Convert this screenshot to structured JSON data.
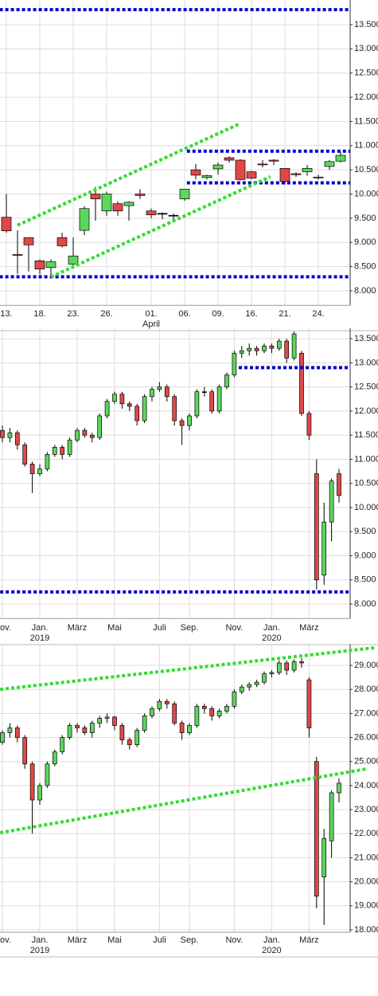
{
  "chart_data": [
    {
      "type": "candlestick",
      "categories": [
        "13.",
        null,
        null,
        "18.",
        null,
        null,
        "23.",
        null,
        null,
        "26.",
        null,
        null,
        null,
        "01.",
        null,
        null,
        "06.",
        null,
        null,
        "09.",
        null,
        null,
        "16.",
        null,
        null,
        "21.",
        null,
        null,
        "24.",
        null,
        null
      ],
      "x_sublabels": [
        null,
        null,
        null,
        null,
        null,
        null,
        null,
        null,
        null,
        null,
        null,
        null,
        null,
        "April",
        null,
        null,
        null,
        null,
        null,
        null,
        null,
        null,
        null,
        null,
        null,
        null,
        null,
        null,
        null,
        null,
        null
      ],
      "open": [
        9520,
        8750,
        9100,
        8620,
        8480,
        9100,
        8550,
        9250,
        10000,
        9650,
        9800,
        9760,
        10000,
        9650,
        9600,
        9560,
        9900,
        10500,
        10340,
        10520,
        10750,
        10700,
        10460,
        10620,
        10700,
        10530,
        10420,
        10460,
        10350,
        10570,
        10680
      ],
      "high": [
        10000,
        9250,
        9100,
        8650,
        8650,
        9200,
        9100,
        9750,
        10150,
        10050,
        9850,
        9850,
        10100,
        9700,
        9620,
        9600,
        10100,
        10620,
        10400,
        10650,
        10780,
        10720,
        10480,
        10700,
        10720,
        10540,
        10450,
        10600,
        10400,
        10700,
        10870
      ],
      "low": [
        9200,
        8350,
        8400,
        8340,
        8260,
        8900,
        8520,
        9150,
        9450,
        9550,
        9550,
        9450,
        9900,
        9500,
        9480,
        9450,
        9860,
        10300,
        10300,
        10400,
        10650,
        10280,
        10300,
        10550,
        10600,
        10200,
        10350,
        10380,
        10300,
        10500,
        10650
      ],
      "close": [
        9240,
        8740,
        8950,
        8450,
        8600,
        8930,
        8720,
        9700,
        9900,
        10000,
        9650,
        9830,
        9970,
        9570,
        9600,
        9560,
        10100,
        10390,
        10380,
        10600,
        10700,
        10300,
        10330,
        10610,
        10680,
        10260,
        10400,
        10530,
        10340,
        10670,
        10800
      ],
      "up_color": "#5cd65c",
      "down_color": "#e04848",
      "flat_color": "#000000",
      "ylim": [
        7700,
        14000
      ],
      "yticks": [
        {
          "value": 8000,
          "label": "8.000"
        },
        {
          "value": 8500,
          "label": "8.500"
        },
        {
          "value": 9000,
          "label": "9.000"
        },
        {
          "value": 9500,
          "label": "9.500"
        },
        {
          "value": 10000,
          "label": "10.000"
        },
        {
          "value": 10500,
          "label": "10.500"
        },
        {
          "value": 11000,
          "label": "11.000"
        },
        {
          "value": 11500,
          "label": "11.500"
        },
        {
          "value": 12000,
          "label": "12.000"
        },
        {
          "value": 12500,
          "label": "12.500"
        },
        {
          "value": 13000,
          "label": "13.000"
        },
        {
          "value": 13500,
          "label": "13.500"
        }
      ],
      "grid": true,
      "lines": [
        {
          "x0": -0.6,
          "y0": 13810,
          "x1": 30.86,
          "y1": 13810,
          "color": "#0000cc",
          "style": "dotted"
        },
        {
          "x0": -0.6,
          "y0": 8290,
          "x1": 30.86,
          "y1": 8290,
          "color": "#0000cc",
          "style": "dotted"
        },
        {
          "x0": 16.2,
          "y0": 10885,
          "x1": 30.86,
          "y1": 10885,
          "color": "#0000cc",
          "style": "dotted"
        },
        {
          "x0": 16.2,
          "y0": 10230,
          "x1": 30.86,
          "y1": 10230,
          "color": "#0000cc",
          "style": "dotted"
        },
        {
          "x0": 1,
          "y0": 9355,
          "x1": 20.86,
          "y1": 11444,
          "color": "#33dd33",
          "style": "dotted"
        },
        {
          "x0": 4,
          "y0": 8286,
          "x1": 23.7,
          "y1": 10359,
          "color": "#33dd33",
          "style": "dotted"
        }
      ]
    },
    {
      "type": "candlestick",
      "categories": [
        "Nov.",
        null,
        null,
        null,
        null,
        "Jan.",
        null,
        null,
        null,
        null,
        "März",
        null,
        null,
        null,
        null,
        "Mai",
        null,
        null,
        null,
        null,
        null,
        "Juli",
        null,
        null,
        null,
        "Sep.",
        null,
        null,
        null,
        null,
        null,
        "Nov.",
        null,
        null,
        null,
        null,
        "Jan.",
        null,
        null,
        null,
        null,
        "März",
        null,
        null,
        null,
        null
      ],
      "x_sublabels": [
        null,
        null,
        null,
        null,
        null,
        "2019",
        null,
        null,
        null,
        null,
        null,
        null,
        null,
        null,
        null,
        null,
        null,
        null,
        null,
        null,
        null,
        null,
        null,
        null,
        null,
        null,
        null,
        null,
        null,
        null,
        null,
        null,
        null,
        null,
        null,
        null,
        "2020",
        null,
        null,
        null,
        null,
        null,
        null,
        null,
        null,
        null
      ],
      "open": [
        11600,
        11450,
        11550,
        11300,
        10900,
        10700,
        10800,
        11100,
        11250,
        11100,
        11400,
        11600,
        11500,
        11450,
        11900,
        12200,
        12350,
        12150,
        12100,
        11800,
        12300,
        12450,
        12500,
        12300,
        11800,
        11700,
        11900,
        12400,
        12400,
        12000,
        12500,
        12750,
        13200,
        13250,
        13300,
        13250,
        13350,
        13300,
        13450,
        13100,
        13200,
        11950,
        10700,
        8600,
        9700,
        10700
      ],
      "high": [
        11700,
        11650,
        11600,
        11350,
        10950,
        10900,
        11150,
        11300,
        11300,
        11450,
        11650,
        11650,
        11550,
        11950,
        12250,
        12400,
        12400,
        12200,
        12150,
        12350,
        12500,
        12600,
        12550,
        12350,
        11850,
        11950,
        12450,
        12500,
        12450,
        12550,
        12800,
        13250,
        13350,
        13400,
        13350,
        13400,
        13400,
        13500,
        13500,
        13650,
        13250,
        12000,
        11000,
        10100,
        10600,
        10800
      ],
      "low": [
        11350,
        11350,
        11200,
        10850,
        10300,
        10650,
        10750,
        11050,
        11000,
        11050,
        11350,
        11450,
        11350,
        11400,
        11850,
        12150,
        12050,
        12000,
        11700,
        11750,
        12200,
        12400,
        12200,
        11700,
        11300,
        11600,
        11850,
        12300,
        11950,
        11950,
        12450,
        12700,
        13100,
        13150,
        13150,
        13200,
        13200,
        13250,
        13000,
        13050,
        11900,
        11400,
        8300,
        8400,
        9300,
        10100
      ],
      "close": [
        11450,
        11550,
        11300,
        10900,
        10700,
        10800,
        11100,
        11250,
        11100,
        11400,
        11600,
        11500,
        11450,
        11900,
        12200,
        12350,
        12150,
        12100,
        11800,
        12300,
        12450,
        12500,
        12300,
        11800,
        11700,
        11900,
        12400,
        12400,
        12000,
        12500,
        12750,
        13200,
        13250,
        13300,
        13250,
        13350,
        13300,
        13450,
        13100,
        13600,
        11950,
        11500,
        8500,
        9700,
        10550,
        10250
      ],
      "up_color": "#5cd65c",
      "down_color": "#e04848",
      "flat_color": "#000000",
      "ylim": [
        7700,
        13650
      ],
      "yticks": [
        {
          "value": 8000,
          "label": "8.000"
        },
        {
          "value": 8500,
          "label": "8.500"
        },
        {
          "value": 9000,
          "label": "9.000"
        },
        {
          "value": 9500,
          "label": "9.500"
        },
        {
          "value": 10000,
          "label": "10.000"
        },
        {
          "value": 10500,
          "label": "10.500"
        },
        {
          "value": 11000,
          "label": "11.000"
        },
        {
          "value": 11500,
          "label": "11.500"
        },
        {
          "value": 12000,
          "label": "12.000"
        },
        {
          "value": 12500,
          "label": "12.500"
        },
        {
          "value": 13000,
          "label": "13.000"
        },
        {
          "value": 13500,
          "label": "13.500"
        }
      ],
      "grid": true,
      "lines": [
        {
          "x0": 31.6,
          "y0": 12900,
          "x1": 46.5,
          "y1": 12900,
          "color": "#0000cc",
          "style": "dotted"
        },
        {
          "x0": -0.3,
          "y0": 8250,
          "x1": 46.5,
          "y1": 8250,
          "color": "#0000cc",
          "style": "dotted"
        }
      ]
    },
    {
      "type": "candlestick",
      "categories": [
        "Nov.",
        null,
        null,
        null,
        null,
        "Jan.",
        null,
        null,
        null,
        null,
        "März",
        null,
        null,
        null,
        null,
        "Mai",
        null,
        null,
        null,
        null,
        null,
        "Juli",
        null,
        null,
        null,
        "Sep.",
        null,
        null,
        null,
        null,
        null,
        "Nov.",
        null,
        null,
        null,
        null,
        "Jan.",
        null,
        null,
        null,
        null,
        "März",
        null,
        null,
        null,
        null
      ],
      "x_sublabels": [
        null,
        null,
        null,
        null,
        null,
        "2019",
        null,
        null,
        null,
        null,
        null,
        null,
        null,
        null,
        null,
        null,
        null,
        null,
        null,
        null,
        null,
        null,
        null,
        null,
        null,
        null,
        null,
        null,
        null,
        null,
        null,
        null,
        null,
        null,
        null,
        null,
        "2020",
        null,
        null,
        null,
        null,
        null,
        null,
        null,
        null,
        null
      ],
      "open": [
        25800,
        26200,
        26400,
        26000,
        24900,
        23400,
        24000,
        24900,
        25400,
        26000,
        26500,
        26400,
        26200,
        26600,
        26800,
        26850,
        26500,
        25900,
        25700,
        26300,
        26900,
        27200,
        27500,
        27400,
        26600,
        26200,
        26500,
        27300,
        27200,
        26900,
        27100,
        27300,
        27900,
        28100,
        28200,
        28300,
        28650,
        28700,
        29100,
        28800,
        29150,
        28400,
        25000,
        20200,
        21700,
        23700
      ],
      "high": [
        26300,
        26600,
        26500,
        26100,
        25000,
        24100,
        25000,
        25500,
        26100,
        26600,
        26600,
        26500,
        26700,
        26900,
        27000,
        26900,
        26600,
        26000,
        26400,
        27000,
        27300,
        27600,
        27600,
        27500,
        26700,
        26600,
        27400,
        27400,
        27300,
        27200,
        27400,
        28000,
        28200,
        28300,
        28400,
        28750,
        28800,
        29200,
        29200,
        29250,
        29300,
        28500,
        25200,
        22200,
        23800,
        24300
      ],
      "low": [
        25700,
        26000,
        25800,
        24700,
        22000,
        23200,
        23900,
        24800,
        25300,
        25900,
        26200,
        26100,
        26000,
        26400,
        26600,
        26300,
        25700,
        25500,
        25600,
        26200,
        26800,
        27100,
        27200,
        26500,
        25900,
        26100,
        26400,
        27000,
        26700,
        26800,
        27000,
        27200,
        27800,
        27950,
        28100,
        28200,
        28500,
        28600,
        28600,
        28700,
        28900,
        26000,
        18900,
        18200,
        21000,
        23300
      ],
      "close": [
        26200,
        26400,
        26000,
        24900,
        23400,
        24000,
        24900,
        25400,
        26000,
        26500,
        26400,
        26200,
        26600,
        26800,
        26850,
        26500,
        25900,
        25700,
        26300,
        26900,
        27200,
        27500,
        27400,
        26600,
        26200,
        26500,
        27300,
        27200,
        26900,
        27100,
        27300,
        27900,
        28100,
        28200,
        28300,
        28650,
        28700,
        29100,
        28800,
        29150,
        29100,
        26400,
        19400,
        21800,
        23700,
        24100
      ],
      "up_color": "#5cd65c",
      "down_color": "#e04848",
      "flat_color": "#000000",
      "ylim": [
        17900,
        29750
      ],
      "yticks": [
        {
          "value": 18000,
          "label": "18.000"
        },
        {
          "value": 19000,
          "label": "19.000"
        },
        {
          "value": 20000,
          "label": "20.000"
        },
        {
          "value": 21000,
          "label": "21.000"
        },
        {
          "value": 22000,
          "label": "22.000"
        },
        {
          "value": 23000,
          "label": "23.000"
        },
        {
          "value": 24000,
          "label": "24.000"
        },
        {
          "value": 25000,
          "label": "25.000"
        },
        {
          "value": 26000,
          "label": "26.000"
        },
        {
          "value": 27000,
          "label": "27.000"
        },
        {
          "value": 28000,
          "label": "28.000"
        },
        {
          "value": 29000,
          "label": "29.000"
        }
      ],
      "grid": true,
      "lines": [
        {
          "x0": -0.3,
          "y0": 28000,
          "x1": 49.7,
          "y1": 29730,
          "color": "#33dd33",
          "style": "dotted"
        },
        {
          "x0": -0.3,
          "y0": 22040,
          "x1": 48.6,
          "y1": 24690,
          "color": "#33dd33",
          "style": "dotted"
        }
      ]
    }
  ]
}
